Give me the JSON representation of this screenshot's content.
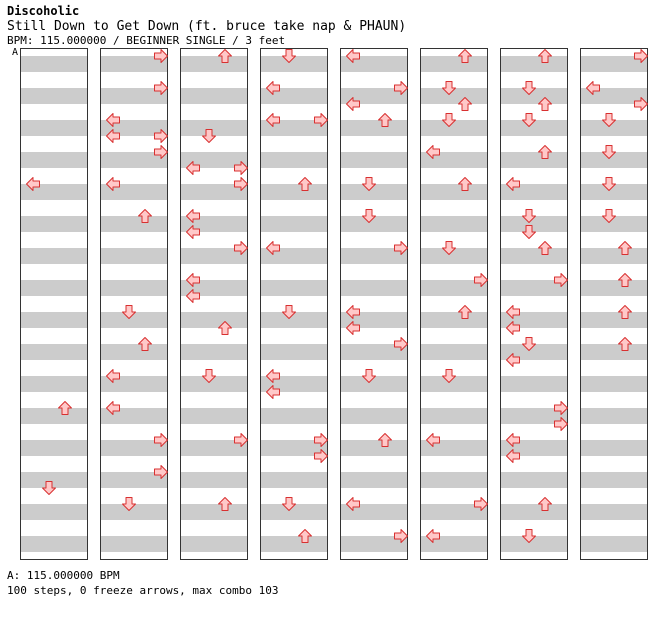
{
  "header": {
    "artist": "Discoholic",
    "title": "Still Down to Get Down (ft. bruce take nap & PHAUN)",
    "info": "BPM: 115.000000 / BEGINNER SINGLE / 3 feet",
    "bpm_marker": "A"
  },
  "footer": {
    "bpm_line": "A: 115.000000 BPM",
    "summary": "100 steps, 0 freeze arrows, max combo 103"
  },
  "colors": {
    "arrow_fill": "#ffc8c8",
    "arrow_stroke": "#d83030",
    "band": "#cccccc"
  },
  "chart_data": {
    "type": "step-chart",
    "columns": 8,
    "beats_per_column": 32,
    "lanes": [
      "left",
      "down",
      "up",
      "right"
    ],
    "notes": [
      [
        0,
        16,
        "left"
      ],
      [
        0,
        44,
        "up"
      ],
      [
        0,
        54,
        "down"
      ],
      [
        1,
        0,
        "right"
      ],
      [
        1,
        4,
        "right"
      ],
      [
        1,
        8,
        "left"
      ],
      [
        1,
        10,
        "left"
      ],
      [
        1,
        10,
        "right"
      ],
      [
        1,
        12,
        "right"
      ],
      [
        1,
        16,
        "left"
      ],
      [
        1,
        20,
        "up"
      ],
      [
        1,
        32,
        "down"
      ],
      [
        1,
        36,
        "up"
      ],
      [
        1,
        40,
        "left"
      ],
      [
        1,
        44,
        "left"
      ],
      [
        1,
        48,
        "right"
      ],
      [
        1,
        52,
        "right"
      ],
      [
        1,
        56,
        "down"
      ],
      [
        2,
        0,
        "up"
      ],
      [
        2,
        10,
        "down"
      ],
      [
        2,
        14,
        "left"
      ],
      [
        2,
        14,
        "right"
      ],
      [
        2,
        16,
        "right"
      ],
      [
        2,
        20,
        "left"
      ],
      [
        2,
        22,
        "left"
      ],
      [
        2,
        24,
        "right"
      ],
      [
        2,
        28,
        "left"
      ],
      [
        2,
        30,
        "left"
      ],
      [
        2,
        34,
        "up"
      ],
      [
        2,
        40,
        "down"
      ],
      [
        2,
        48,
        "right"
      ],
      [
        2,
        56,
        "up"
      ],
      [
        3,
        0,
        "down"
      ],
      [
        3,
        4,
        "left"
      ],
      [
        3,
        8,
        "left"
      ],
      [
        3,
        8,
        "right"
      ],
      [
        3,
        16,
        "up"
      ],
      [
        3,
        24,
        "left"
      ],
      [
        3,
        32,
        "down"
      ],
      [
        3,
        40,
        "left"
      ],
      [
        3,
        42,
        "left"
      ],
      [
        3,
        48,
        "right"
      ],
      [
        3,
        50,
        "right"
      ],
      [
        3,
        56,
        "down"
      ],
      [
        3,
        60,
        "up"
      ],
      [
        4,
        0,
        "left"
      ],
      [
        4,
        4,
        "right"
      ],
      [
        4,
        6,
        "left"
      ],
      [
        4,
        8,
        "up"
      ],
      [
        4,
        16,
        "down"
      ],
      [
        4,
        20,
        "down"
      ],
      [
        4,
        24,
        "right"
      ],
      [
        4,
        32,
        "left"
      ],
      [
        4,
        34,
        "left"
      ],
      [
        4,
        36,
        "right"
      ],
      [
        4,
        40,
        "down"
      ],
      [
        4,
        48,
        "up"
      ],
      [
        4,
        56,
        "left"
      ],
      [
        4,
        60,
        "right"
      ],
      [
        5,
        0,
        "up"
      ],
      [
        5,
        4,
        "down"
      ],
      [
        5,
        6,
        "up"
      ],
      [
        5,
        8,
        "down"
      ],
      [
        5,
        12,
        "left"
      ],
      [
        5,
        16,
        "up"
      ],
      [
        5,
        24,
        "down"
      ],
      [
        5,
        28,
        "right"
      ],
      [
        5,
        32,
        "up"
      ],
      [
        5,
        40,
        "down"
      ],
      [
        5,
        48,
        "left"
      ],
      [
        5,
        56,
        "right"
      ],
      [
        5,
        60,
        "left"
      ],
      [
        6,
        0,
        "up"
      ],
      [
        6,
        4,
        "down"
      ],
      [
        6,
        6,
        "up"
      ],
      [
        6,
        8,
        "down"
      ],
      [
        6,
        12,
        "up"
      ],
      [
        6,
        16,
        "left"
      ],
      [
        6,
        20,
        "down"
      ],
      [
        6,
        22,
        "down"
      ],
      [
        6,
        24,
        "up"
      ],
      [
        6,
        28,
        "right"
      ],
      [
        6,
        32,
        "left"
      ],
      [
        6,
        34,
        "left"
      ],
      [
        6,
        36,
        "down"
      ],
      [
        6,
        38,
        "left"
      ],
      [
        6,
        44,
        "right"
      ],
      [
        6,
        46,
        "right"
      ],
      [
        6,
        48,
        "left"
      ],
      [
        6,
        50,
        "left"
      ],
      [
        6,
        56,
        "up"
      ],
      [
        6,
        60,
        "down"
      ],
      [
        7,
        0,
        "right"
      ],
      [
        7,
        4,
        "left"
      ],
      [
        7,
        6,
        "right"
      ],
      [
        7,
        8,
        "down"
      ],
      [
        7,
        12,
        "down"
      ],
      [
        7,
        16,
        "down"
      ],
      [
        7,
        20,
        "down"
      ],
      [
        7,
        24,
        "up"
      ],
      [
        7,
        28,
        "up"
      ],
      [
        7,
        32,
        "up"
      ],
      [
        7,
        36,
        "up"
      ]
    ]
  }
}
